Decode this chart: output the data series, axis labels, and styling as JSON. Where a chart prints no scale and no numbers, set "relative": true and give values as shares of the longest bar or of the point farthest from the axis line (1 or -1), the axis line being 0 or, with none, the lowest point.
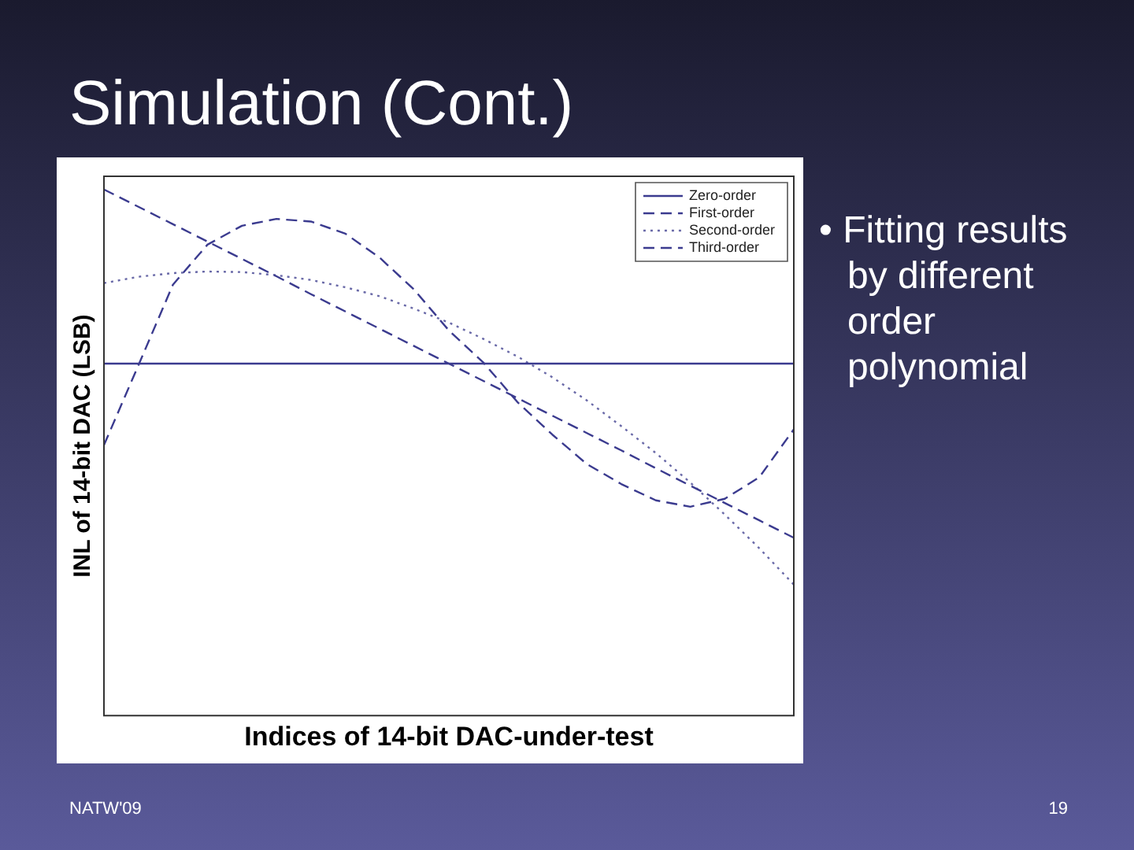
{
  "chart_data": {
    "type": "line",
    "title": "Simulation (Cont.)",
    "xlabel": "Indices of 14-bit DAC-under-test",
    "ylabel": "INL of 14-bit DAC (LSB)",
    "relative": true,
    "categories": [
      null,
      null,
      null,
      null,
      null,
      null,
      null,
      null,
      null,
      null,
      null,
      null,
      null,
      null,
      null,
      null,
      null,
      null,
      null,
      null,
      null
    ],
    "series": [
      {
        "name": "Zero-order",
        "color": "#3b3b8f",
        "line_style": "solid",
        "values": [
          0.669,
          0.669,
          0.669,
          0.669,
          0.669,
          0.669,
          0.669,
          0.669,
          0.669,
          0.669,
          0.669,
          0.669,
          0.669,
          0.669,
          0.669,
          0.669,
          0.669,
          0.669,
          0.669,
          0.669,
          0.669
        ]
      },
      {
        "name": "First-order",
        "color": "#3b3b8f",
        "line_style": "dashed",
        "values": [
          1,
          0.967,
          0.934,
          0.901,
          0.868,
          0.835,
          0.801,
          0.768,
          0.735,
          0.702,
          0.669,
          0.636,
          0.603,
          0.57,
          0.537,
          0.504,
          0.47,
          0.437,
          0.404,
          0.371,
          0.338
        ]
      },
      {
        "name": "Second-order",
        "color": "#6a6aa8",
        "line_style": "dotted",
        "values": [
          0.822,
          0.834,
          0.841,
          0.844,
          0.843,
          0.837,
          0.828,
          0.814,
          0.797,
          0.773,
          0.747,
          0.716,
          0.682,
          0.643,
          0.599,
          0.55,
          0.499,
          0.443,
          0.382,
          0.318,
          0.249
        ]
      },
      {
        "name": "Third-order",
        "color": "#3b3b8f",
        "line_style": "dashed",
        "values": [
          0.514,
          0.666,
          0.819,
          0.895,
          0.931,
          0.944,
          0.939,
          0.916,
          0.87,
          0.809,
          0.732,
          0.671,
          0.595,
          0.534,
          0.478,
          0.44,
          0.409,
          0.397,
          0.412,
          0.453,
          0.544
        ]
      }
    ],
    "legend": "top right",
    "grid": false,
    "marker": "none",
    "annotations": [
      "• Fitting results by different order polynomial",
      "NATW'09",
      "19"
    ]
  }
}
